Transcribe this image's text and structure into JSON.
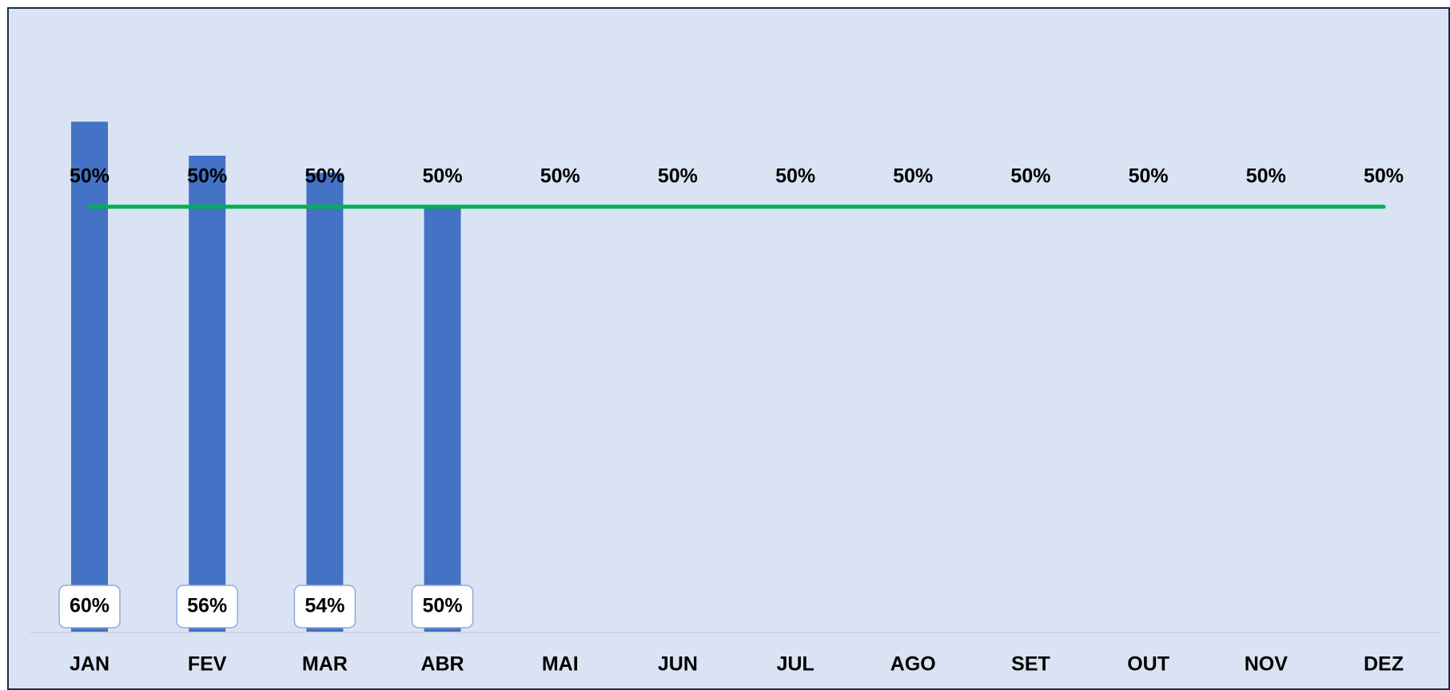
{
  "chart_data": {
    "type": "bar",
    "categories": [
      "JAN",
      "FEV",
      "MAR",
      "ABR",
      "MAI",
      "JUN",
      "JUL",
      "AGO",
      "SET",
      "OUT",
      "NOV",
      "DEZ"
    ],
    "series": [
      {
        "type": "bar",
        "color": "#4472c4",
        "values": [
          60,
          56,
          54,
          50,
          null,
          null,
          null,
          null,
          null,
          null,
          null,
          null
        ],
        "value_labels": [
          "60%",
          "56%",
          "54%",
          "50%",
          null,
          null,
          null,
          null,
          null,
          null,
          null,
          null
        ]
      },
      {
        "type": "line",
        "color": "#00b050",
        "values": [
          50,
          50,
          50,
          50,
          50,
          50,
          50,
          50,
          50,
          50,
          50,
          50
        ],
        "value_labels": [
          "50%",
          "50%",
          "50%",
          "50%",
          "50%",
          "50%",
          "50%",
          "50%",
          "50%",
          "50%",
          "50%",
          "50%"
        ]
      }
    ],
    "ylim": [
      0,
      70
    ]
  }
}
